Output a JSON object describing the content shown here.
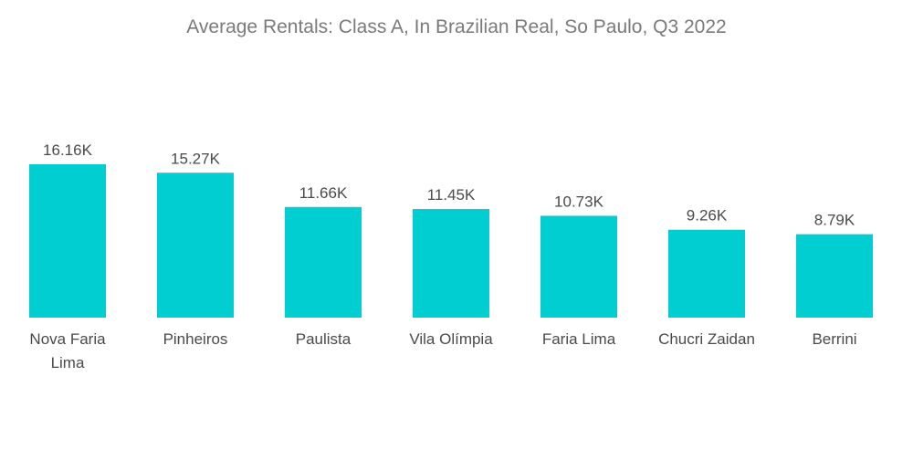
{
  "chart_data": {
    "type": "bar",
    "title": "Average Rentals: Class A, In Brazilian Real, So Paulo, Q3 2022",
    "categories": [
      "Nova Faria Lima",
      "Pinheiros",
      "Paulista",
      "Vila Olímpia",
      "Faria Lima",
      "Chucri Zaidan",
      "Berrini"
    ],
    "category_lines": [
      [
        "Nova Faria",
        "Lima"
      ],
      [
        "Pinheiros"
      ],
      [
        "Paulista"
      ],
      [
        "Vila Olímpia"
      ],
      [
        "Faria Lima"
      ],
      [
        "Chucri Zaidan"
      ],
      [
        "Berrini"
      ]
    ],
    "values": [
      16.16,
      15.27,
      11.66,
      11.45,
      10.73,
      9.26,
      8.79
    ],
    "data_labels": [
      "16.16K",
      "15.27K",
      "11.66K",
      "11.45K",
      "10.73K",
      "9.26K",
      "8.79K"
    ],
    "ylim": [
      0,
      16.16
    ],
    "grid": false,
    "bar_color": "#00ced1"
  }
}
